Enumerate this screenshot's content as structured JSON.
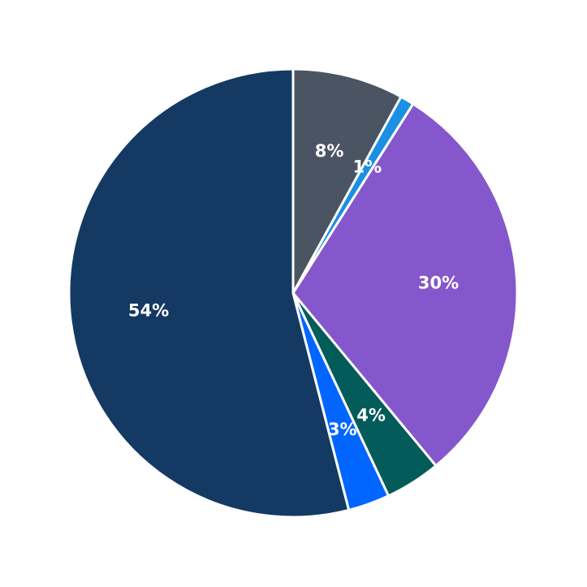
{
  "chart_data": {
    "type": "pie",
    "values": [
      8,
      1,
      30,
      4,
      3,
      54
    ],
    "value_labels": [
      "8%",
      "1%",
      "30%",
      "4%",
      "3%",
      "54%"
    ],
    "colors": [
      "#4a5463",
      "#1a8fe3",
      "#8557cc",
      "#045c5a",
      "#0066ff",
      "#143a63"
    ]
  }
}
